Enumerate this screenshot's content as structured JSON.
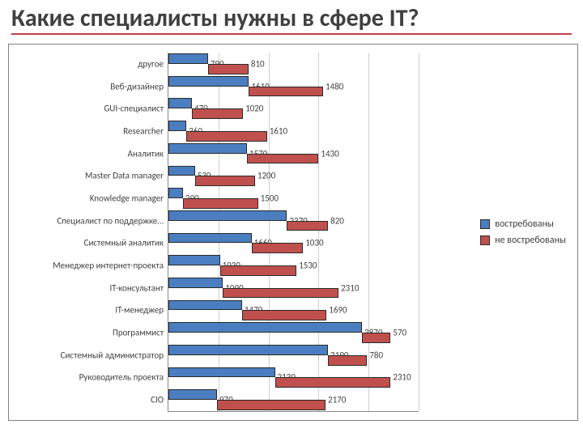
{
  "title": "Какие специалисты нужны в сфере IT?",
  "chart": {
    "type": "bar-horizontal-stacked-labels",
    "x_max": 5000,
    "grid_step": 1000,
    "background_color": "#ffffff",
    "grid_color": "#cfcfcf",
    "axis_color": "#888888",
    "label_fontsize": 11,
    "label_color": "#404040",
    "series": [
      {
        "name": "востребованы",
        "color": "#4a7ec0"
      },
      {
        "name": "не востребованы",
        "color": "#c0504d"
      }
    ],
    "categories": [
      {
        "label": "другое",
        "v1": 790,
        "v2": 810
      },
      {
        "label": "Веб-дизайнер",
        "v1": 1610,
        "v2": 1480
      },
      {
        "label": "GUI-специалист",
        "v1": 470,
        "v2": 1020
      },
      {
        "label": "Researcher",
        "v1": 360,
        "v2": 1610
      },
      {
        "label": "Аналитик",
        "v1": 1570,
        "v2": 1430
      },
      {
        "label": "Master Data manager",
        "v1": 530,
        "v2": 1200
      },
      {
        "label": "Knowledge manager",
        "v1": 290,
        "v2": 1500
      },
      {
        "label": "Специалист по поддержке…",
        "v1": 2370,
        "v2": 820
      },
      {
        "label": "Системный аналитик",
        "v1": 1660,
        "v2": 1030
      },
      {
        "label": "Менеджер интернет-проекта",
        "v1": 1030,
        "v2": 1530
      },
      {
        "label": "IT-консультант",
        "v1": 1090,
        "v2": 2310
      },
      {
        "label": "IT-менеджер",
        "v1": 1470,
        "v2": 1690
      },
      {
        "label": "Программист",
        "v1": 3870,
        "v2": 570
      },
      {
        "label": "Системный администратор",
        "v1": 3190,
        "v2": 780
      },
      {
        "label": "Руководитель проекта",
        "v1": 2130,
        "v2": 2310
      },
      {
        "label": "CIO",
        "v1": 970,
        "v2": 2170
      }
    ]
  },
  "title_style": {
    "fontsize": 30,
    "color": "#404040",
    "underline_color": "#c04048"
  }
}
